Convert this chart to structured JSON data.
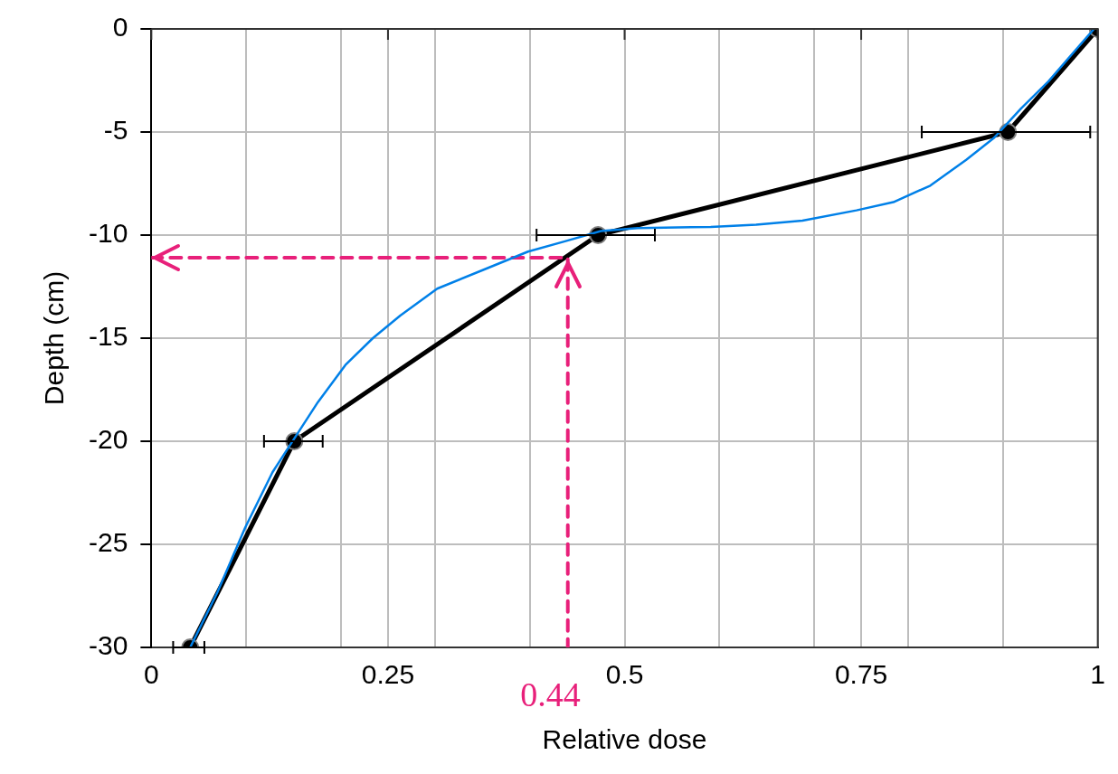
{
  "chart_data": {
    "type": "line",
    "xlabel": "Relative dose",
    "ylabel": "Depth (cm)",
    "xlim": [
      0,
      1
    ],
    "ylim": [
      -30,
      0
    ],
    "xticks": [
      0,
      {
        "value": 0.1,
        "label": null
      },
      {
        "value": 0.2,
        "label": null
      },
      0.25,
      {
        "value": 0.3,
        "label": null
      },
      {
        "value": 0.4,
        "label": null
      },
      0.5,
      {
        "value": 0.6,
        "label": null
      },
      {
        "value": 0.7,
        "label": null
      },
      0.75,
      {
        "value": 0.8,
        "label": null
      },
      {
        "value": 0.9,
        "label": null
      },
      1
    ],
    "yticks": [
      -30,
      -25,
      -20,
      -15,
      -10,
      -5,
      0
    ],
    "grid": true,
    "legend": false,
    "series": [
      {
        "color": "#000000",
        "marker": "circle",
        "x": [
          0.041,
          0.151,
          0.472,
          0.905,
          1.0
        ],
        "values": [
          -30,
          -20,
          -10,
          -5,
          0
        ],
        "xerrors": [
          [
            0.023,
            0.056
          ],
          [
            0.119,
            0.181
          ],
          [
            0.407,
            0.532
          ],
          [
            0.814,
            0.992
          ],
          null
        ]
      },
      {
        "color": "#0080e8",
        "marker": "none",
        "x": [
          0.041,
          0.07,
          0.099,
          0.128,
          0.152,
          0.176,
          0.205,
          0.234,
          0.263,
          0.302,
          0.35,
          0.398,
          0.437,
          0.475,
          0.514,
          0.591,
          0.639,
          0.688,
          0.745,
          0.784,
          0.823,
          0.861,
          0.89,
          0.919,
          0.948,
          0.977,
          0.996
        ],
        "values": [
          -30,
          -27.3,
          -24.2,
          -21.5,
          -19.8,
          -18.1,
          -16.3,
          -15.0,
          -13.9,
          -12.6,
          -11.7,
          -10.8,
          -10.3,
          -9.8,
          -9.66,
          -9.6,
          -9.5,
          -9.3,
          -8.8,
          -8.4,
          -7.6,
          -6.35,
          -5.3,
          -3.85,
          -2.54,
          -1.0,
          0
        ]
      },
      {
        "color": "#e8207a",
        "marker": "none",
        "line_style": "dashed",
        "x": [
          0,
          0.44,
          0.44
        ],
        "values": [
          -11.1,
          -11.1,
          -30
        ]
      }
    ],
    "annotations": [
      {
        "text": "0.44",
        "x": 0.44,
        "y": -30
      }
    ]
  }
}
